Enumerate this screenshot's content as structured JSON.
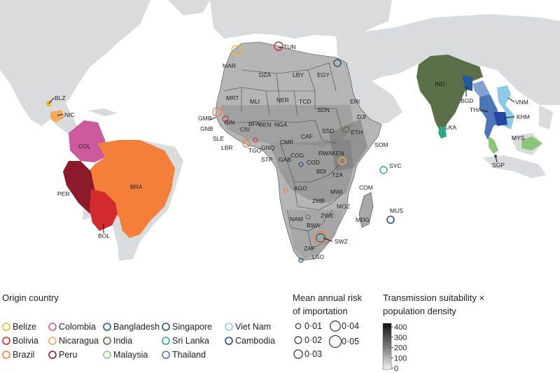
{
  "map": {
    "country_labels": {
      "blz": "BLZ",
      "nic": "NIC",
      "col": "COL",
      "bra": "BRA",
      "per": "PER",
      "bol": "BOL",
      "mar": "MAR",
      "tun": "TUN",
      "dza": "DZA",
      "lby": "LBY",
      "egy": "EGY",
      "mrt": "MRT",
      "mli": "MLI",
      "ner": "NER",
      "tcd": "TCD",
      "sdn": "SDN",
      "eri": "ERI",
      "dji": "DJI",
      "gmb": "GMB",
      "gnb": "GNB",
      "gin": "GIN",
      "sle": "SLE",
      "lbr": "LBR",
      "civ": "CIV",
      "bfa": "BFA",
      "nga": "NGA",
      "ben": "BEN",
      "tgo": "TGO",
      "gnq": "GNQ",
      "stp": "STP",
      "cmr": "CMR",
      "caf": "CAF",
      "ssd": "SSD",
      "eth": "ETH",
      "som": "SOM",
      "gab": "GAB",
      "cog": "COG",
      "cod": "COD",
      "rwa": "RWA",
      "bdi": "BDI",
      "ken": "KEN",
      "tza": "TZA",
      "ago": "AGO",
      "zmb": "ZMB",
      "mwi": "MWI",
      "moz": "MOZ",
      "nam": "NAM",
      "bwa": "BWA",
      "zwe": "ZWE",
      "zaf": "ZAF",
      "swz": "SWZ",
      "lso": "LSO",
      "mdg": "MDG",
      "com": "COM",
      "syc": "SYC",
      "mus": "MUS",
      "ind": "IND",
      "bgd": "BGD",
      "lka": "LKA",
      "tha": "THA",
      "vnm": "VNM",
      "khm": "KHM",
      "mys": "MYS",
      "sgp": "SGP"
    },
    "colors": {
      "land": "#d9dcdf",
      "background": "#ffffff",
      "africa_base": "#9e9e9e",
      "belize": "#f5b335",
      "nicaragua": "#f7a95a",
      "colombia": "#cc5a9c",
      "peru": "#8b1a2b",
      "bolivia": "#d32a2e",
      "brazil": "#f47f3a",
      "india": "#5a6e47",
      "bangladesh": "#1f5a9e",
      "sri_lanka": "#2fa889",
      "thailand": "#4d75b8",
      "viet_nam": "#8fc9e8",
      "cambodia": "#2447a3",
      "malaysia": "#8ec479",
      "singapore": "#28556b"
    }
  },
  "legend": {
    "origin": {
      "title": "Origin country",
      "items": [
        {
          "label": "Belize",
          "color": "#f5b335"
        },
        {
          "label": "Colombia",
          "color": "#cc5a9c"
        },
        {
          "label": "Bangladesh",
          "color": "#1f5a9e"
        },
        {
          "label": "Singapore",
          "color": "#28556b"
        },
        {
          "label": "Viet Nam",
          "color": "#8fc9e8"
        },
        {
          "label": "Bolivia",
          "color": "#d32a2e"
        },
        {
          "label": "Nicaragua",
          "color": "#f7a95a"
        },
        {
          "label": "India",
          "color": "#5a6e47"
        },
        {
          "label": "Sri Lanka",
          "color": "#2fa889"
        },
        {
          "label": "Cambodia",
          "color": "#2447a3"
        },
        {
          "label": "Brazil",
          "color": "#f47f3a"
        },
        {
          "label": "Peru",
          "color": "#8b1a2b"
        },
        {
          "label": "Malaysia",
          "color": "#8ec479"
        },
        {
          "label": "Thailand",
          "color": "#4d75b8"
        }
      ]
    },
    "risk": {
      "title_line1": "Mean annual risk",
      "title_line2": "of importation",
      "items": [
        {
          "label": "0·01",
          "value": 0.01
        },
        {
          "label": "0·02",
          "value": 0.02
        },
        {
          "label": "0·03",
          "value": 0.03
        },
        {
          "label": "0·04",
          "value": 0.04
        },
        {
          "label": "0·05",
          "value": 0.05
        }
      ]
    },
    "suitability": {
      "title_line1": "Transmission suitability ×",
      "title_line2": "population density",
      "ticks": [
        "400",
        "300",
        "200",
        "100",
        "0"
      ],
      "range": [
        0,
        400
      ]
    }
  }
}
